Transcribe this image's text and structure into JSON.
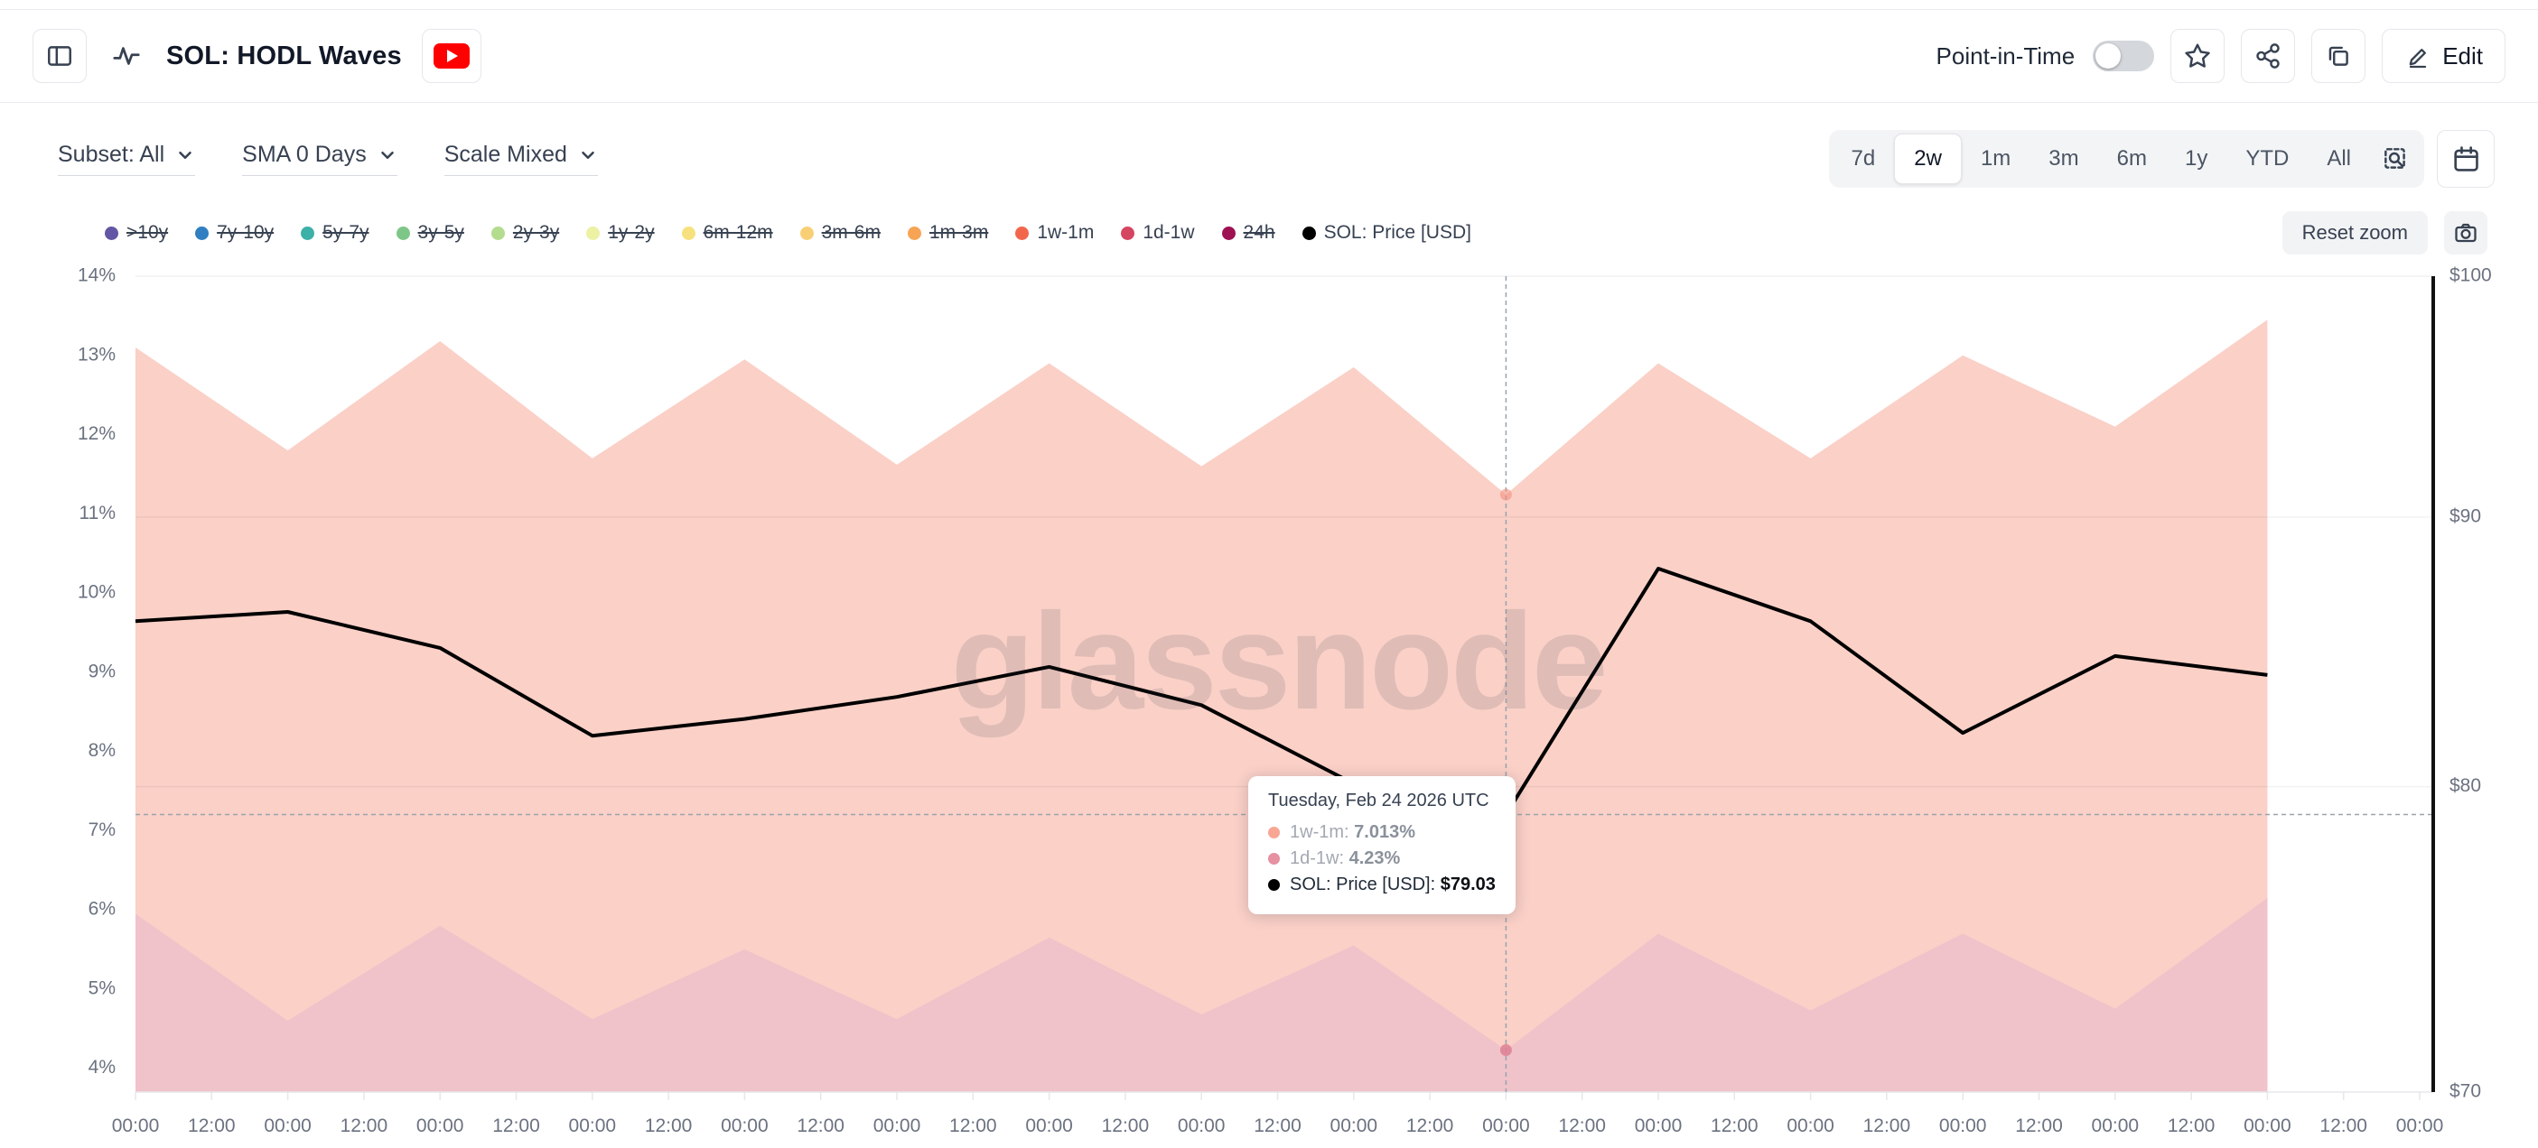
{
  "header": {
    "title": "SOL: HODL Waves",
    "point_in_time_label": "Point-in-Time",
    "point_in_time_on": false,
    "edit_label": "Edit",
    "youtube_color": "#ff0000"
  },
  "controls": {
    "dropdowns": [
      {
        "label": "Subset: All"
      },
      {
        "label": "SMA 0 Days"
      },
      {
        "label": "Scale Mixed"
      }
    ],
    "ranges": [
      "7d",
      "2w",
      "1m",
      "3m",
      "6m",
      "1y",
      "YTD",
      "All"
    ],
    "active_range": "2w",
    "reset_zoom_label": "Reset zoom"
  },
  "legend": {
    "items": [
      {
        "label": ">10y",
        "color": "#6256a5",
        "struck": true
      },
      {
        "label": "7y-10y",
        "color": "#2f7fc1",
        "struck": true
      },
      {
        "label": "5y-7y",
        "color": "#3db0a8",
        "struck": true
      },
      {
        "label": "3y-5y",
        "color": "#7ec687",
        "struck": true
      },
      {
        "label": "2y-3y",
        "color": "#b3dc8e",
        "struck": true
      },
      {
        "label": "1y-2y",
        "color": "#ecf1a4",
        "struck": true
      },
      {
        "label": "6m-12m",
        "color": "#f7e17e",
        "struck": true
      },
      {
        "label": "3m-6m",
        "color": "#f9cf75",
        "struck": true
      },
      {
        "label": "1m-3m",
        "color": "#f7a455",
        "struck": true
      },
      {
        "label": "1w-1m",
        "color": "#f2674c",
        "struck": false
      },
      {
        "label": "1d-1w",
        "color": "#d64560",
        "struck": false
      },
      {
        "label": "24h",
        "color": "#9e1152",
        "struck": true
      },
      {
        "label": "SOL: Price [USD]",
        "color": "#000000",
        "struck": false
      }
    ]
  },
  "tooltip": {
    "title": "Tuesday, Feb 24 2026 UTC",
    "rows": [
      {
        "dot": "#f8a694",
        "label": "1w-1m:",
        "value": "7.013%",
        "muted": true
      },
      {
        "dot": "#e690a2",
        "label": "1d-1w:",
        "value": "4.23%",
        "muted": true
      },
      {
        "dot": "#000000",
        "label": "SOL: Price [USD]:",
        "value": "$79.03",
        "muted": false
      }
    ]
  },
  "watermark": "glassnode",
  "chart_data": {
    "type": "area",
    "title": "SOL: HODL Waves",
    "x_tick_labels": [
      "00:00",
      "12:00",
      "00:00",
      "12:00",
      "00:00",
      "12:00",
      "00:00",
      "12:00",
      "00:00",
      "12:00",
      "00:00",
      "12:00",
      "00:00",
      "12:00",
      "00:00",
      "12:00",
      "00:00",
      "12:00",
      "00:00",
      "12:00",
      "00:00",
      "12:00",
      "00:00",
      "12:00",
      "00:00",
      "12:00",
      "00:00",
      "12:00",
      "00:00",
      "12:00",
      "00:00"
    ],
    "days": [
      0,
      1,
      2,
      3,
      4,
      5,
      6,
      7,
      8,
      9,
      10,
      11,
      12,
      13,
      14
    ],
    "hover_index": 9,
    "hover_date": "Tuesday, Feb 24 2026 UTC",
    "left_axis": {
      "unit": "%",
      "tick_labels": [
        "14%",
        "13%",
        "12%",
        "11%",
        "10%",
        "9%",
        "8%",
        "7%",
        "6%",
        "5%",
        "4%"
      ],
      "tick_values": [
        14,
        13,
        12,
        11,
        10,
        9,
        8,
        7,
        6,
        5,
        4
      ],
      "top": 14,
      "bottom": 3.7
    },
    "right_axis": {
      "unit": "USD",
      "tick_labels": [
        "$100",
        "$90",
        "$80",
        "$70"
      ],
      "tick_values": [
        100,
        90,
        80,
        70
      ],
      "min": 70,
      "max": 100,
      "scale": "log"
    },
    "grid": {
      "horizontal_at_price": [
        90,
        80
      ],
      "vertical": false
    },
    "legend_position": "top-left",
    "series": [
      {
        "name": "1d-1w",
        "type": "area-stacked-base",
        "fill": "#f0c2c9",
        "stroke": "#d64560",
        "values": [
          5.95,
          4.6,
          5.8,
          4.62,
          5.5,
          4.62,
          5.65,
          4.68,
          5.55,
          4.23,
          5.7,
          4.73,
          5.7,
          4.75,
          6.15
        ]
      },
      {
        "name": "1w-1m",
        "type": "area-stacked",
        "fill": "#fad0c7",
        "stroke": "#f2674c",
        "values": [
          7.15,
          7.2,
          7.38,
          7.08,
          7.45,
          7.0,
          7.25,
          6.92,
          7.3,
          7.013,
          7.2,
          6.97,
          7.3,
          7.35,
          7.3
        ]
      },
      {
        "name": "SOL: Price [USD]",
        "type": "line",
        "axis": "right",
        "color": "#000000",
        "values": [
          86.0,
          86.35,
          85.0,
          81.8,
          82.4,
          83.2,
          84.3,
          82.9,
          80.1,
          79.03,
          88.0,
          86.0,
          81.9,
          84.7,
          84.0
        ]
      }
    ]
  }
}
